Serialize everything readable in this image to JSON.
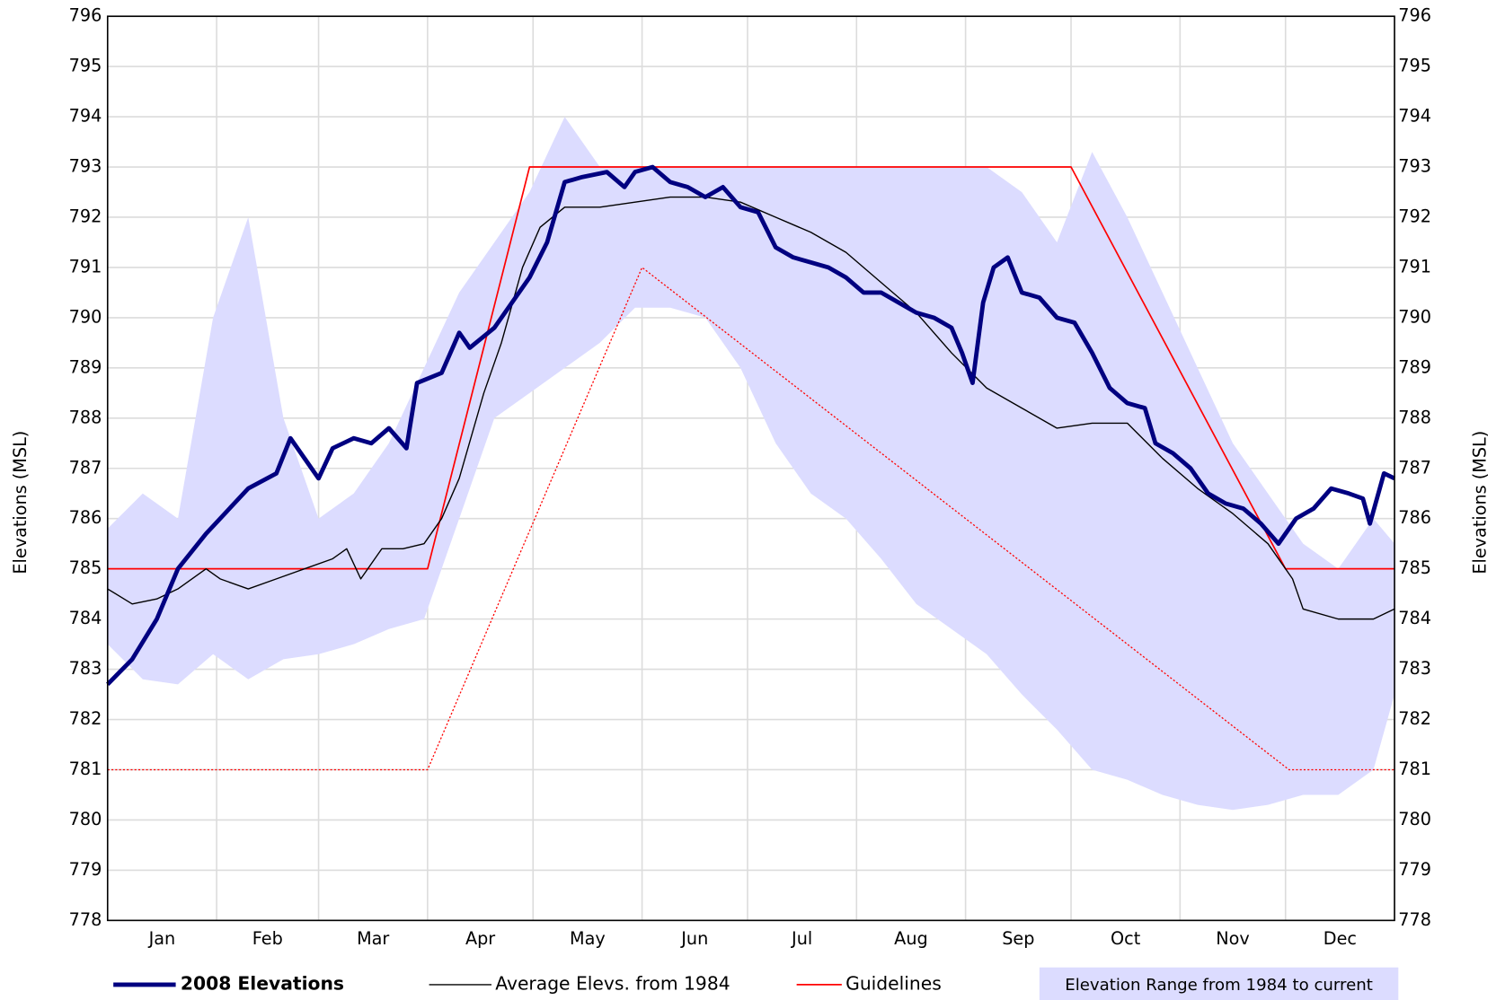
{
  "chart_data": {
    "type": "line",
    "xlim": [
      0,
      366
    ],
    "xticks": [
      {
        "value": 15.5,
        "label": "Jan"
      },
      {
        "value": 45.5,
        "label": "Feb"
      },
      {
        "value": 75.5,
        "label": "Mar"
      },
      {
        "value": 106,
        "label": "Apr"
      },
      {
        "value": 136.5,
        "label": "May"
      },
      {
        "value": 167,
        "label": "Jun"
      },
      {
        "value": 197.5,
        "label": "Jul"
      },
      {
        "value": 228.5,
        "label": "Aug"
      },
      {
        "value": 259,
        "label": "Sep"
      },
      {
        "value": 289.5,
        "label": "Oct"
      },
      {
        "value": 320,
        "label": "Nov"
      },
      {
        "value": 350.5,
        "label": "Dec"
      }
    ],
    "xgrid": [
      0,
      31,
      60,
      91,
      121,
      152,
      182,
      213,
      244,
      274,
      305,
      335,
      366
    ],
    "ylim": [
      778,
      796
    ],
    "yticks": [
      778,
      779,
      780,
      781,
      782,
      783,
      784,
      785,
      786,
      787,
      788,
      789,
      790,
      791,
      792,
      793,
      794,
      795,
      796
    ],
    "y2lim": [
      778,
      796
    ],
    "y2ticks": [
      778,
      779,
      780,
      781,
      782,
      783,
      784,
      785,
      786,
      787,
      788,
      789,
      790,
      791,
      792,
      793,
      794,
      795,
      796
    ],
    "ylabel": "Elevations (MSL)",
    "y2label": "Elevations (MSL)",
    "grid": true,
    "band": {
      "name": "Elevation Range from 1984 to current",
      "color": "#dcdcff",
      "x": [
        0,
        10,
        20,
        30,
        40,
        50,
        60,
        70,
        80,
        90,
        100,
        110,
        120,
        130,
        140,
        150,
        160,
        170,
        180,
        190,
        200,
        210,
        220,
        230,
        240,
        250,
        260,
        270,
        280,
        290,
        300,
        310,
        320,
        330,
        340,
        350,
        360,
        366
      ],
      "upper": [
        785.8,
        786.5,
        786.0,
        790.0,
        792.0,
        788.0,
        786.0,
        786.5,
        787.5,
        789.0,
        790.5,
        791.5,
        792.5,
        794.0,
        793.0,
        793.0,
        793.0,
        793.0,
        793.0,
        793.0,
        793.0,
        793.0,
        793.0,
        793.0,
        793.0,
        793.0,
        792.5,
        791.5,
        793.3,
        792.0,
        790.5,
        789.0,
        787.5,
        786.5,
        785.5,
        785.0,
        786.0,
        785.5
      ],
      "lower": [
        783.5,
        782.8,
        782.7,
        783.3,
        782.8,
        783.2,
        783.3,
        783.5,
        783.8,
        784.0,
        786.0,
        788.0,
        788.5,
        789.0,
        789.5,
        790.2,
        790.2,
        790.0,
        789.0,
        787.5,
        786.5,
        786.0,
        785.2,
        784.3,
        783.8,
        783.3,
        782.5,
        781.8,
        781.0,
        780.8,
        780.5,
        780.3,
        780.2,
        780.3,
        780.5,
        780.5,
        781.0,
        782.5
      ]
    },
    "series": [
      {
        "name": "2008 Elevations",
        "color": "#000080",
        "x": [
          0,
          7,
          14,
          20,
          28,
          32,
          40,
          48,
          52,
          56,
          60,
          64,
          70,
          75,
          80,
          85,
          88,
          95,
          100,
          103,
          110,
          115,
          120,
          125,
          130,
          135,
          142,
          147,
          150,
          155,
          160,
          165,
          170,
          175,
          180,
          185,
          190,
          195,
          200,
          205,
          210,
          215,
          220,
          225,
          230,
          235,
          240,
          243,
          246,
          249,
          252,
          256,
          260,
          265,
          270,
          275,
          280,
          285,
          290,
          295,
          298,
          303,
          308,
          313,
          318,
          323,
          328,
          333,
          338,
          343,
          348,
          353,
          357,
          359,
          363,
          366
        ],
        "values": [
          782.7,
          783.2,
          784.0,
          785.0,
          785.7,
          786.0,
          786.6,
          786.9,
          787.6,
          787.2,
          786.8,
          787.4,
          787.6,
          787.5,
          787.8,
          787.4,
          788.7,
          788.9,
          789.7,
          789.4,
          789.8,
          790.3,
          790.8,
          791.5,
          792.7,
          792.8,
          792.9,
          792.6,
          792.9,
          793.0,
          792.7,
          792.6,
          792.4,
          792.6,
          792.2,
          792.1,
          791.4,
          791.2,
          791.1,
          791.0,
          790.8,
          790.5,
          790.5,
          790.3,
          790.1,
          790.0,
          789.8,
          789.3,
          788.7,
          790.3,
          791.0,
          791.2,
          790.5,
          790.4,
          790.0,
          789.9,
          789.3,
          788.6,
          788.3,
          788.2,
          787.5,
          787.3,
          787.0,
          786.5,
          786.3,
          786.2,
          785.9,
          785.5,
          786.0,
          786.2,
          786.6,
          786.5,
          786.4,
          785.9,
          786.9,
          786.8
        ]
      },
      {
        "name": "Average Elevs. from 1984",
        "color": "#000000",
        "x": [
          0,
          7,
          14,
          20,
          28,
          32,
          40,
          48,
          56,
          64,
          68,
          72,
          78,
          84,
          90,
          95,
          100,
          107,
          112,
          118,
          123,
          130,
          140,
          150,
          160,
          170,
          180,
          190,
          200,
          210,
          220,
          230,
          240,
          250,
          260,
          270,
          280,
          290,
          300,
          310,
          320,
          330,
          337,
          340,
          350,
          360,
          366
        ],
        "values": [
          784.6,
          784.3,
          784.4,
          784.6,
          785.0,
          784.8,
          784.6,
          784.8,
          785.0,
          785.2,
          785.4,
          784.8,
          785.4,
          785.4,
          785.5,
          786.0,
          786.8,
          788.5,
          789.5,
          791.0,
          791.8,
          792.2,
          792.2,
          792.3,
          792.4,
          792.4,
          792.3,
          792.0,
          791.7,
          791.3,
          790.7,
          790.1,
          789.3,
          788.6,
          788.2,
          787.8,
          787.9,
          787.9,
          787.2,
          786.6,
          786.1,
          785.5,
          784.8,
          784.2,
          784.0,
          784.0,
          784.2
        ]
      },
      {
        "name": "Guidelines",
        "color": "#ff0000",
        "x": [
          0,
          91,
          120,
          274,
          335,
          366
        ],
        "values": [
          785,
          785,
          793,
          793,
          785,
          785
        ],
        "lower_x": [
          0,
          91,
          152,
          336,
          366
        ],
        "lower_values": [
          781,
          781,
          791,
          781,
          781
        ]
      }
    ]
  }
}
